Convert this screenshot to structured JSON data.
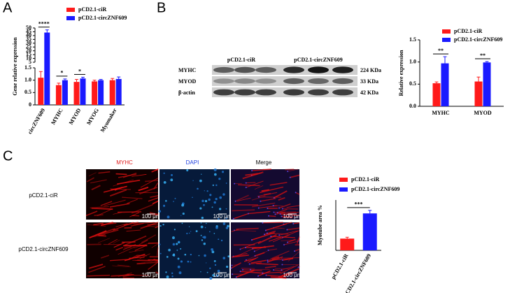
{
  "panel_labels": [
    "A",
    "B",
    "C"
  ],
  "chart_data": [
    {
      "type": "bar",
      "ylabel": "Gene relative expression",
      "categories": [
        "circZNF609",
        "MYHC",
        "MYOD",
        "MYOG",
        "Myomaker"
      ],
      "series": [
        {
          "name": "pCD2.1-ciR",
          "color": "#ff1a1a",
          "values": [
            1.1,
            0.8,
            0.93,
            0.95,
            1.0
          ],
          "errors": [
            0.25,
            0.08,
            0.1,
            0.05,
            0.07
          ]
        },
        {
          "name": "pCD2.1-circZNF609",
          "color": "#1a1aff",
          "values": [
            44,
            1.0,
            1.07,
            1.0,
            1.05
          ],
          "errors": [
            3.5,
            0.05,
            0.05,
            0.03,
            0.08
          ]
        }
      ],
      "ylim": [
        0,
        50
      ],
      "ybreak": [
        1.5,
        5
      ],
      "yticks": [
        0,
        0.5,
        {
          "value": 1,
          "label": "1.0"
        },
        1.5,
        5,
        10,
        15,
        20,
        25,
        30,
        35,
        40,
        45,
        50
      ],
      "significance": [
        "****",
        "*",
        "*",
        null,
        null
      ]
    },
    {
      "type": "bar",
      "ylabel": "Relative expression",
      "categories": [
        "MYHC",
        "MYOD"
      ],
      "series": [
        {
          "name": "pCD2.1-ciR",
          "color": "#ff1a1a",
          "values": [
            0.52,
            0.56
          ],
          "errors": [
            0.03,
            0.1
          ]
        },
        {
          "name": "pCD2.1-circZNF609",
          "color": "#1a1aff",
          "values": [
            0.97,
            0.99
          ],
          "errors": [
            0.15,
            0.02
          ]
        }
      ],
      "ylim": [
        0,
        1.5
      ],
      "yticks": [
        {
          "value": 0,
          "label": "0.0"
        },
        0.5,
        {
          "value": 1,
          "label": "1.0"
        },
        1.5
      ],
      "significance": [
        "**",
        "**"
      ]
    },
    {
      "type": "bar",
      "ylabel": "Myotube area %",
      "categories": [
        "pCD2.1-ciR",
        "pCD2.1-circZNF609"
      ],
      "values": [
        3.5,
        11
      ],
      "errors": [
        0.4,
        0.9
      ],
      "colors": [
        "#ff1a1a",
        "#1a1aff"
      ],
      "ylim": [
        0,
        15
      ],
      "significance": "***"
    }
  ],
  "blot": {
    "groups": [
      "pCD2.1-ciR",
      "pCD2.1-circZNF609"
    ],
    "rows": [
      {
        "label": "MYHC",
        "size": "224 KDa"
      },
      {
        "label": "MYOD",
        "size": "33 KDa"
      },
      {
        "label": "β-actin",
        "size": "42 KDa"
      }
    ]
  },
  "images": {
    "columns": [
      "MYHC",
      "DAPI",
      "Merge"
    ],
    "rows": [
      "pCD2.1-ciR",
      "pCD2.1-circZNF609"
    ],
    "scale_bar": "100 μm"
  }
}
